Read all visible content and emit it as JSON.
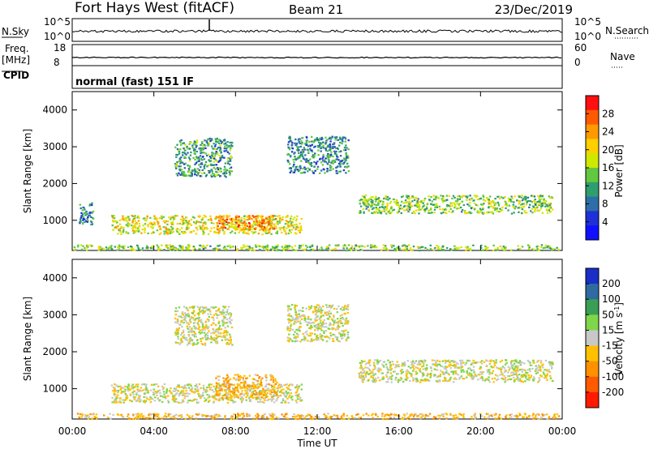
{
  "header": {
    "station": "Fort Hays West (fitACF)",
    "beam": "Beam 21",
    "date": "23/Dec/2019"
  },
  "top_panels": {
    "nsky_label": "N.Sky",
    "nsearch_label": "N.Search",
    "noise_ticks_left": [
      "10^5",
      "10^0"
    ],
    "noise_ticks_right": [
      "10^5",
      "10^0"
    ],
    "freq_label_1": "Freq.",
    "freq_label_2": "[MHz]",
    "freq_ticks": [
      "18",
      "8"
    ],
    "nave_label": "Nave",
    "nave_ticks": [
      "60",
      "0"
    ],
    "cpid_label": "CPID",
    "cpid_text": "normal (fast) 151 IF"
  },
  "x_axis": {
    "label": "Time UT",
    "ticks": [
      "00:00",
      "04:00",
      "08:00",
      "12:00",
      "16:00",
      "20:00",
      "00:00"
    ]
  },
  "power_colorbar": {
    "label": "Power [dB]",
    "ticks": [
      "28",
      "24",
      "20",
      "16",
      "12",
      "8",
      "4"
    ],
    "colors": [
      "#ff1010",
      "#ff5a00",
      "#ff9a00",
      "#ffcf00",
      "#cfe800",
      "#62c840",
      "#2f9e6e",
      "#2d6ea8",
      "#2030d8",
      "#1010ff"
    ]
  },
  "velocity_colorbar": {
    "label_main": "Velocity [m s",
    "label_sup": "-1",
    "label_end": "]",
    "ticks": [
      "200",
      "100",
      "50",
      "15",
      "-15",
      "-50",
      "-100",
      "-200"
    ],
    "colors": [
      "#1a2ec8",
      "#2f6aa0",
      "#3a9e56",
      "#7ed64a",
      "#c8c8c8",
      "#ffc000",
      "#ff9000",
      "#ff5a00",
      "#ff1a00"
    ]
  },
  "chart_data": [
    {
      "type": "heatmap",
      "title": "",
      "ylabel": "Slant Range [km]",
      "xlabel": "",
      "ylim": [
        180,
        4500
      ],
      "xlim_hours": [
        0,
        24
      ],
      "y_ticks": [
        1000,
        2000,
        3000,
        4000
      ],
      "value_label": "Power [dB]",
      "value_range": [
        0,
        30
      ],
      "regions": [
        {
          "x": [
            1.9,
            11.2
          ],
          "y": [
            640,
            1150
          ],
          "value": 18
        },
        {
          "x": [
            7.0,
            10.0
          ],
          "y": [
            760,
            1150
          ],
          "value": 24
        },
        {
          "x": [
            5.0,
            7.8
          ],
          "y": [
            2200,
            3250
          ],
          "value": 10
        },
        {
          "x": [
            10.5,
            13.5
          ],
          "y": [
            2300,
            3300
          ],
          "value": 9
        },
        {
          "x": [
            14.0,
            23.5
          ],
          "y": [
            1200,
            1700
          ],
          "value": 14
        },
        {
          "x": [
            0.3,
            1.0
          ],
          "y": [
            900,
            1500
          ],
          "value": 8
        },
        {
          "x": [
            0.0,
            23.8
          ],
          "y": [
            200,
            350
          ],
          "value": 14
        }
      ]
    },
    {
      "type": "heatmap",
      "title": "",
      "ylabel": "Slant Range [km]",
      "xlabel": "Time UT",
      "ylim": [
        180,
        4500
      ],
      "xlim_hours": [
        0,
        24
      ],
      "y_ticks": [
        1000,
        2000,
        3000,
        4000
      ],
      "value_label": "Velocity [m s-1]",
      "value_range": [
        -250,
        250
      ],
      "regions": [
        {
          "x": [
            1.9,
            11.2
          ],
          "y": [
            640,
            1150
          ],
          "value": -5
        },
        {
          "x": [
            7.0,
            10.0
          ],
          "y": [
            760,
            1400
          ],
          "value": -45
        },
        {
          "x": [
            5.0,
            7.8
          ],
          "y": [
            2200,
            3250
          ],
          "value": 0
        },
        {
          "x": [
            10.5,
            13.5
          ],
          "y": [
            2300,
            3300
          ],
          "value": 0
        },
        {
          "x": [
            14.0,
            23.5
          ],
          "y": [
            1200,
            1800
          ],
          "value": 0
        },
        {
          "x": [
            0.0,
            23.8
          ],
          "y": [
            200,
            350
          ],
          "value": -40
        }
      ]
    }
  ]
}
